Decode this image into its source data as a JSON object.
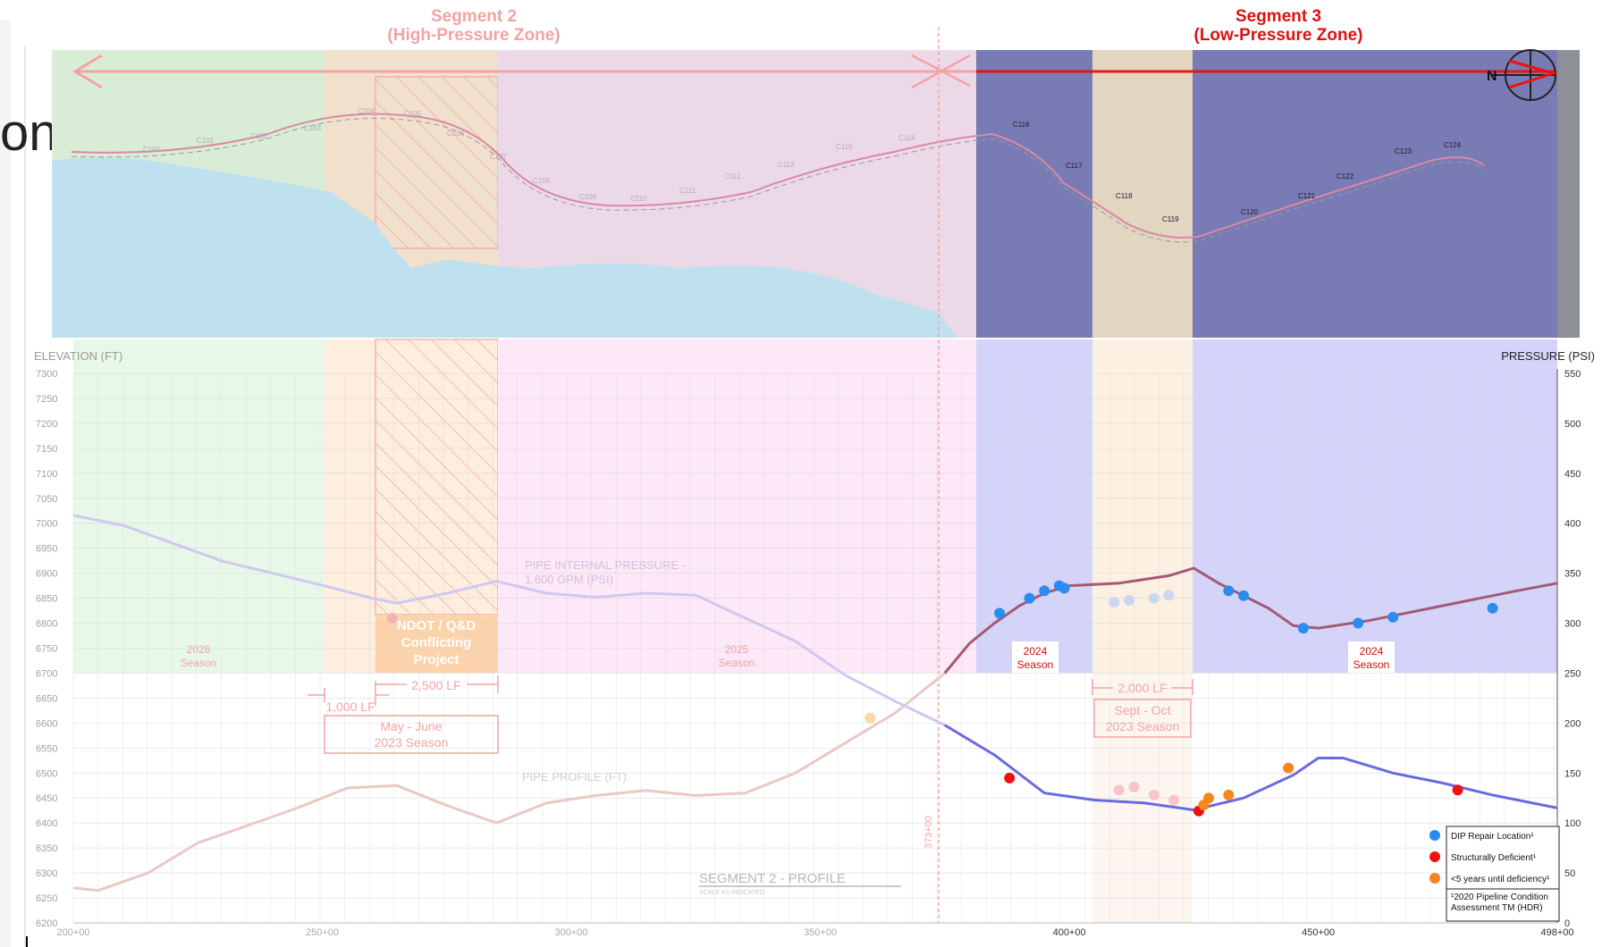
{
  "header": {
    "partial_title": "on",
    "segment2_title": "Segment 2",
    "segment2_subtitle": "(High-Pressure Zone)",
    "segment3_title": "Segment 3",
    "segment3_subtitle": "(Low-Pressure Zone)"
  },
  "axes": {
    "left_label": "ELEVATION (FT)",
    "right_label": "PRESSURE (PSI)",
    "left_ticks": [
      7300,
      7250,
      7200,
      7150,
      7100,
      7050,
      7000,
      6950,
      6900,
      6850,
      6800,
      6750,
      6700,
      6650,
      6600,
      6550,
      6500,
      6450,
      6400,
      6350,
      6300,
      6250,
      6200
    ],
    "right_ticks": [
      550,
      500,
      450,
      400,
      350,
      300,
      250,
      200,
      150,
      100,
      50,
      0
    ],
    "station_ticks": [
      "200+00",
      "250+00",
      "300+00",
      "350+00",
      "400+00",
      "450+00",
      "498+00"
    ]
  },
  "zones": {
    "season_2026": [
      "2026",
      "Season"
    ],
    "season_2025": [
      "2025",
      "Season"
    ],
    "season_2024a": [
      "2024",
      "Season"
    ],
    "season_2024b": [
      "2024",
      "Season"
    ],
    "ndot": [
      "NDOT / Q&D",
      "Conflicting",
      "Project"
    ]
  },
  "dimensions": {
    "lf_1000": "1,000 LF",
    "lf_2500": "2,500 LF",
    "lf_2000": "2,000 LF",
    "may_june": [
      "May - June",
      "2023 Season"
    ],
    "sept_oct": [
      "Sept - Oct",
      "2023 Season"
    ]
  },
  "labels": {
    "pipe_pressure": [
      "PIPE INTERNAL PRESSURE -",
      "1,600 GPM (PSI)"
    ],
    "pipe_profile": "PIPE PROFILE (FT)",
    "segment_profile": "SEGMENT 2 - PROFILE",
    "scale_note": "SCALE AS INDICATED",
    "station_marker": "373+00"
  },
  "map_labels": [
    "C116",
    "C117",
    "C118",
    "C119",
    "C120",
    "C121",
    "C122",
    "C123",
    "C124",
    "C114",
    "C115",
    "C113",
    "C112",
    "C111",
    "C110",
    "C109",
    "C108",
    "C107",
    "C106",
    "C105",
    "C104",
    "C103",
    "C102",
    "C101",
    "C100"
  ],
  "legend": {
    "items": [
      {
        "label": "DIP Repair Location¹",
        "color": "#2b8cf0"
      },
      {
        "label": "Structurally Deficient¹",
        "color": "#ee1111"
      },
      {
        "label": "<5 years until deficiency¹",
        "color": "#f5871f"
      }
    ],
    "footnote": [
      "¹2020 Pipeline Condition",
      "Assessment TM (HDR)"
    ]
  },
  "colors": {
    "green": "#e8f8e8",
    "peach": "#fdeedd",
    "pink": "#fce8f7",
    "blue": "#d4d4fb",
    "water": "#bee0ee",
    "red": "#ee1111",
    "pressure": "#a35a73",
    "profile": "#6a6ae0"
  },
  "chart_data": {
    "type": "line",
    "x_label": "",
    "station_range": [
      20000,
      49800
    ],
    "elevation_range": [
      6200,
      7300
    ],
    "pressure_range": [
      0,
      550
    ],
    "series": [
      {
        "name": "PIPE PROFILE (FT)",
        "axis": "elevation",
        "points": [
          [
            20000,
            6270
          ],
          [
            20500,
            6265
          ],
          [
            21500,
            6300
          ],
          [
            22500,
            6360
          ],
          [
            23500,
            6395
          ],
          [
            24500,
            6430
          ],
          [
            25500,
            6470
          ],
          [
            26500,
            6475
          ],
          [
            27500,
            6435
          ],
          [
            28500,
            6400
          ],
          [
            29500,
            6440
          ],
          [
            30500,
            6455
          ],
          [
            31500,
            6465
          ],
          [
            32500,
            6455
          ],
          [
            33500,
            6460
          ],
          [
            34500,
            6500
          ],
          [
            35500,
            6560
          ],
          [
            36500,
            6620
          ],
          [
            37500,
            6700
          ],
          [
            38000,
            6760
          ],
          [
            38500,
            6800
          ],
          [
            39000,
            6835
          ],
          [
            39500,
            6860
          ],
          [
            40000,
            6875
          ],
          [
            41000,
            6880
          ],
          [
            42000,
            6895
          ],
          [
            42500,
            6910
          ],
          [
            43000,
            6880
          ],
          [
            44000,
            6830
          ],
          [
            44500,
            6795
          ],
          [
            45000,
            6790
          ],
          [
            46000,
            6805
          ],
          [
            47000,
            6825
          ],
          [
            48000,
            6845
          ],
          [
            49000,
            6865
          ],
          [
            49800,
            6880
          ]
        ]
      },
      {
        "name": "PIPE INTERNAL PRESSURE - 1,600 GPM (PSI)",
        "axis": "pressure",
        "points": [
          [
            20000,
            408
          ],
          [
            21000,
            398
          ],
          [
            22000,
            380
          ],
          [
            23000,
            362
          ],
          [
            24000,
            350
          ],
          [
            25000,
            338
          ],
          [
            26000,
            325
          ],
          [
            26500,
            320
          ],
          [
            27500,
            330
          ],
          [
            28500,
            342
          ],
          [
            29500,
            330
          ],
          [
            30500,
            326
          ],
          [
            31500,
            330
          ],
          [
            32500,
            328
          ],
          [
            33500,
            305
          ],
          [
            34500,
            282
          ],
          [
            35500,
            248
          ],
          [
            36500,
            222
          ],
          [
            37500,
            198
          ],
          [
            38500,
            168
          ],
          [
            39500,
            130
          ],
          [
            40500,
            123
          ],
          [
            41500,
            120
          ],
          [
            42500,
            113
          ],
          [
            43500,
            125
          ],
          [
            44500,
            148
          ],
          [
            45000,
            165
          ],
          [
            45500,
            165
          ],
          [
            46500,
            150
          ],
          [
            47500,
            140
          ],
          [
            48500,
            128
          ],
          [
            49800,
            115
          ]
        ]
      }
    ],
    "markers": {
      "dip_repair": [
        [
          38600,
          6820
        ],
        [
          39200,
          6850
        ],
        [
          39500,
          6865
        ],
        [
          39800,
          6875
        ],
        [
          39900,
          6870
        ],
        [
          40900,
          6842
        ],
        [
          41200,
          6846
        ],
        [
          41700,
          6850
        ],
        [
          42000,
          6856
        ],
        [
          43200,
          6865
        ],
        [
          43500,
          6855
        ],
        [
          44700,
          6790
        ],
        [
          45800,
          6800
        ],
        [
          46500,
          6812
        ],
        [
          48500,
          6830
        ]
      ],
      "structurally_deficient": [
        [
          38800,
          145
        ],
        [
          42600,
          112
        ],
        [
          47800,
          133
        ]
      ],
      "less_than_5_years": [
        [
          42700,
          118
        ],
        [
          42800,
          125
        ],
        [
          43200,
          128
        ],
        [
          44400,
          155
        ]
      ]
    }
  }
}
